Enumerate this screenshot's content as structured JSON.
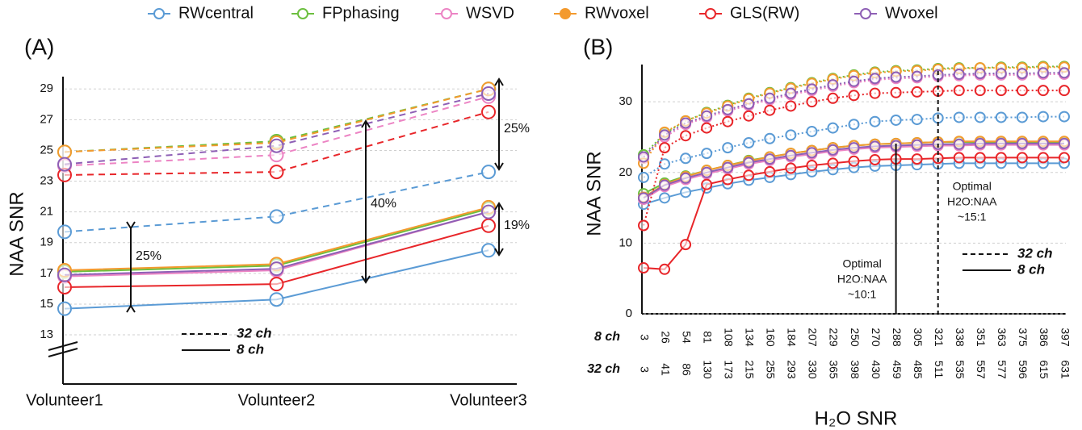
{
  "legend": [
    {
      "name": "RWcentral",
      "color": "#5b9bd5",
      "filled": false
    },
    {
      "name": "FPphasing",
      "color": "#6cbf3f",
      "filled": false
    },
    {
      "name": "WSVD",
      "color": "#ec84c4",
      "filled": false
    },
    {
      "name": "RWvoxel",
      "color": "#f39a2e",
      "filled": true
    },
    {
      "name": "GLS(RW)",
      "color": "#e8262a",
      "filled": false
    },
    {
      "name": "Wvoxel",
      "color": "#8e5fb5",
      "filled": false
    }
  ],
  "chart_data": [
    {
      "type": "line",
      "title": "(A)",
      "y_label": "NAA SNR",
      "categories": [
        "Volunteer1",
        "Volunteer2",
        "Volunteer3"
      ],
      "ylim": [
        9.8,
        29.8
      ],
      "yticks": [
        13,
        15,
        17,
        19,
        21,
        23,
        25,
        27,
        29
      ],
      "grid": true,
      "line_legend": [
        {
          "label": "32 ch",
          "dashed": true
        },
        {
          "label": "8 ch",
          "dashed": false
        }
      ],
      "annotations": [
        "25%",
        "40%",
        "25%",
        "19%"
      ],
      "series": [
        {
          "name": "RWcentral",
          "color": "#5b9bd5",
          "values_8ch": [
            14.7,
            15.3,
            18.5
          ],
          "values_32ch": [
            19.7,
            20.7,
            23.6
          ]
        },
        {
          "name": "FPphasing",
          "color": "#6cbf3f",
          "values_8ch": [
            17.1,
            17.5,
            21.2
          ],
          "values_32ch": [
            24.9,
            25.6,
            29.0
          ]
        },
        {
          "name": "WSVD",
          "color": "#ec84c4",
          "values_8ch": [
            16.8,
            17.2,
            21.0
          ],
          "values_32ch": [
            24.0,
            24.7,
            28.5
          ]
        },
        {
          "name": "RWvoxel",
          "color": "#f39a2e",
          "values_8ch": [
            17.2,
            17.6,
            21.3
          ],
          "values_32ch": [
            24.9,
            25.5,
            29.0
          ]
        },
        {
          "name": "GLS(RW)",
          "color": "#e8262a",
          "values_8ch": [
            16.1,
            16.3,
            20.1
          ],
          "values_32ch": [
            23.4,
            23.6,
            27.5
          ]
        },
        {
          "name": "Wvoxel",
          "color": "#8e5fb5",
          "values_8ch": [
            16.9,
            17.3,
            21.0
          ],
          "values_32ch": [
            24.1,
            25.3,
            28.7
          ]
        }
      ]
    },
    {
      "type": "line",
      "title": "(B)",
      "y_label": "NAA SNR",
      "x_label": "H₂O SNR",
      "xrows": [
        {
          "label": "8 ch",
          "categories": [
            3,
            26,
            54,
            81,
            108,
            134,
            160,
            184,
            207,
            229,
            250,
            270,
            288,
            305,
            321,
            338,
            351,
            363,
            375,
            386,
            397
          ]
        },
        {
          "label": "32 ch",
          "categories": [
            3,
            41,
            86,
            130,
            173,
            215,
            255,
            293,
            330,
            365,
            398,
            430,
            459,
            485,
            511,
            535,
            557,
            577,
            596,
            615,
            631
          ]
        }
      ],
      "ylim": [
        0,
        35.5
      ],
      "yticks": [
        0,
        10,
        20,
        30
      ],
      "grid": true,
      "line_legend": [
        {
          "label": "32 ch",
          "dashed": true
        },
        {
          "label": "8 ch",
          "dashed": false
        }
      ],
      "markers": [
        {
          "index": 12,
          "dashed": false,
          "text": [
            "Optimal",
            "H2O:NAA",
            "~10:1"
          ]
        },
        {
          "index": 14,
          "dashed": true,
          "text": [
            "Optimal",
            "H2O:NAA",
            "~15:1"
          ]
        }
      ],
      "series": [
        {
          "name": "RWcentral",
          "color": "#5b9bd5",
          "values_8ch": [
            15.5,
            16.4,
            17.2,
            17.8,
            18.4,
            18.9,
            19.3,
            19.7,
            20.1,
            20.4,
            20.7,
            20.9,
            21.0,
            21.1,
            21.2,
            21.3,
            21.3,
            21.3,
            21.3,
            21.3,
            21.3
          ],
          "values_32ch": [
            19.3,
            21.2,
            22.0,
            22.7,
            23.5,
            24.2,
            24.8,
            25.3,
            25.8,
            26.3,
            26.8,
            27.2,
            27.4,
            27.5,
            27.7,
            27.8,
            27.8,
            27.8,
            27.8,
            27.9,
            27.9
          ]
        },
        {
          "name": "FPphasing",
          "color": "#6cbf3f",
          "values_8ch": [
            17.0,
            18.5,
            19.5,
            20.3,
            21.0,
            21.7,
            22.2,
            22.7,
            23.1,
            23.5,
            23.8,
            24.0,
            24.1,
            24.2,
            24.3,
            24.3,
            24.3,
            24.3,
            24.3,
            24.3,
            24.3
          ],
          "values_32ch": [
            22.5,
            25.5,
            27.3,
            28.5,
            29.5,
            30.5,
            31.3,
            32.0,
            32.7,
            33.3,
            33.8,
            34.2,
            34.4,
            34.5,
            34.7,
            34.8,
            34.8,
            34.9,
            34.9,
            35.0,
            35.0
          ]
        },
        {
          "name": "WSVD",
          "color": "#ec84c4",
          "values_8ch": [
            16.2,
            18.0,
            19.0,
            19.8,
            20.5,
            21.2,
            21.7,
            22.2,
            22.6,
            23.0,
            23.3,
            23.5,
            23.6,
            23.7,
            23.8,
            23.8,
            23.9,
            23.9,
            23.9,
            23.9,
            23.9
          ],
          "values_32ch": [
            22.0,
            25.0,
            26.8,
            27.8,
            28.7,
            29.5,
            30.3,
            31.0,
            31.6,
            32.2,
            32.7,
            33.1,
            33.3,
            33.4,
            33.6,
            33.7,
            33.8,
            33.8,
            33.8,
            33.9,
            33.9
          ]
        },
        {
          "name": "RWvoxel",
          "color": "#f39a2e",
          "values_8ch": [
            16.5,
            18.3,
            19.4,
            20.3,
            21.0,
            21.6,
            22.2,
            22.7,
            23.1,
            23.5,
            23.8,
            24.0,
            24.1,
            24.2,
            24.3,
            24.4,
            24.4,
            24.4,
            24.4,
            24.4,
            24.4
          ],
          "values_32ch": [
            21.3,
            25.7,
            27.3,
            28.4,
            29.4,
            30.4,
            31.2,
            31.9,
            32.6,
            33.2,
            33.7,
            34.1,
            34.3,
            34.4,
            34.6,
            34.7,
            34.8,
            34.8,
            34.8,
            34.9,
            34.9
          ]
        },
        {
          "name": "GLS(RW)",
          "color": "#e8262a",
          "values_8ch": [
            6.5,
            6.3,
            9.8,
            18.3,
            19.0,
            19.6,
            20.1,
            20.6,
            21.0,
            21.3,
            21.6,
            21.8,
            21.9,
            21.9,
            22.0,
            22.1,
            22.1,
            22.1,
            22.1,
            22.1,
            22.1
          ],
          "values_32ch": [
            12.5,
            23.5,
            25.2,
            26.3,
            27.2,
            28.0,
            28.8,
            29.4,
            30.0,
            30.5,
            30.9,
            31.2,
            31.3,
            31.4,
            31.5,
            31.6,
            31.6,
            31.6,
            31.6,
            31.6,
            31.6
          ]
        },
        {
          "name": "Wvoxel",
          "color": "#8e5fb5",
          "values_8ch": [
            16.4,
            18.2,
            19.2,
            20.0,
            20.7,
            21.4,
            21.9,
            22.4,
            22.8,
            23.2,
            23.5,
            23.7,
            23.8,
            23.9,
            24.0,
            24.0,
            24.1,
            24.1,
            24.1,
            24.1,
            24.1
          ],
          "values_32ch": [
            22.2,
            25.3,
            27.0,
            28.0,
            28.9,
            29.7,
            30.5,
            31.2,
            31.8,
            32.4,
            32.9,
            33.3,
            33.5,
            33.6,
            33.8,
            33.9,
            34.0,
            34.0,
            34.0,
            34.1,
            34.1
          ]
        }
      ]
    }
  ]
}
